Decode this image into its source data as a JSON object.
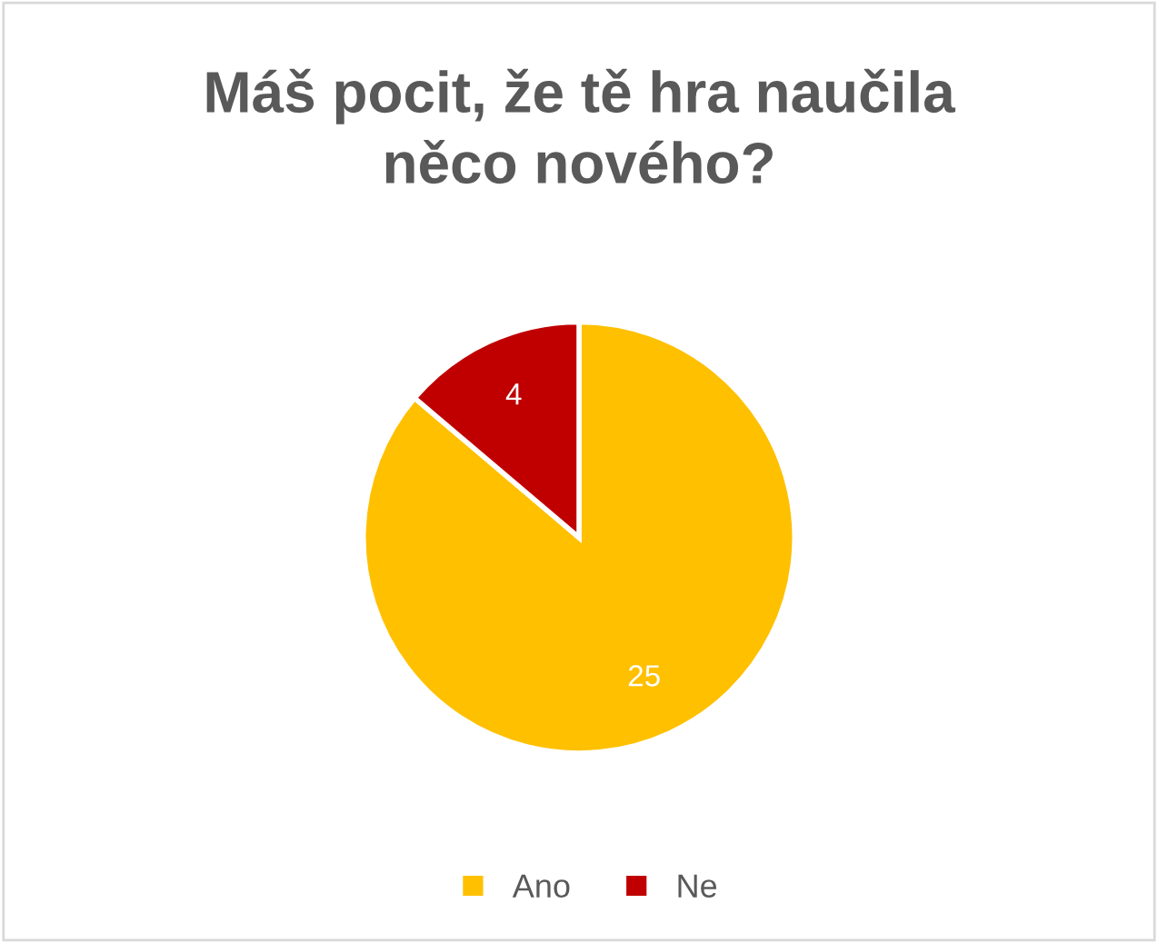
{
  "chart_data": {
    "type": "pie",
    "title": "Máš pocit, že tě hra naučila\nněco nového?",
    "categories": [
      "Ano",
      "Ne"
    ],
    "values": [
      25,
      4
    ],
    "colors": [
      "#ffc000",
      "#c00000"
    ],
    "data_labels": true,
    "legend": "bottom"
  }
}
